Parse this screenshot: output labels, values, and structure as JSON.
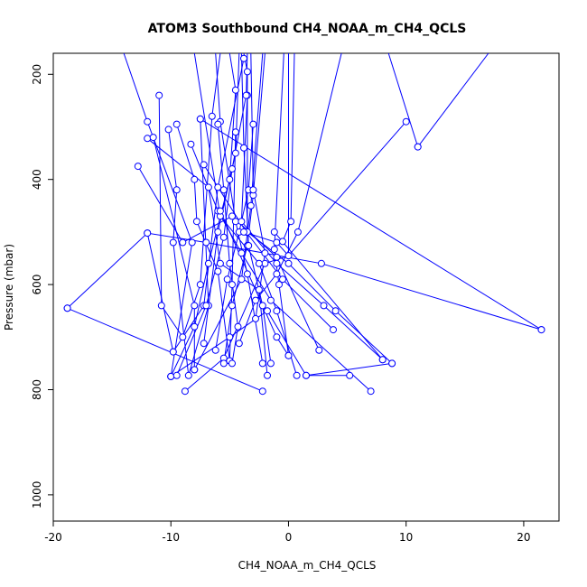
{
  "chart_data": {
    "type": "line",
    "title": "ATOM3 Southbound CH4_NOAA_m_CH4_QCLS",
    "xlabel": "CH4_NOAA_m_CH4_QCLS",
    "ylabel": "Pressure (mbar)",
    "xlim": [
      -20,
      23
    ],
    "ylim": [
      1050,
      160
    ],
    "y_reversed": true,
    "x_ticks": [
      -20,
      -10,
      0,
      10,
      20
    ],
    "y_ticks": [
      200,
      400,
      600,
      800,
      1000
    ],
    "grid": false,
    "line_color": "#0000ff",
    "point_color": "#0000ff",
    "marker": "open-circle",
    "series": [
      {
        "points": [
          [
            -14.0,
            160
          ],
          [
            -12.0,
            290
          ],
          [
            -8.2,
            520
          ],
          [
            -10.0,
            775
          ]
        ]
      },
      {
        "points": [
          [
            -10.0,
            775
          ],
          [
            -5.0,
            700
          ],
          [
            -1.8,
            650
          ],
          [
            1.5,
            773
          ],
          [
            5.2,
            773
          ]
        ]
      },
      {
        "points": [
          [
            -12.0,
            322
          ],
          [
            -6.8,
            415
          ],
          [
            -5.8,
            560
          ],
          [
            -2.5,
            610
          ],
          [
            -1.8,
            773
          ]
        ]
      },
      {
        "points": [
          [
            -18.8,
            645
          ],
          [
            -12.0,
            502
          ],
          [
            -7.0,
            520
          ],
          [
            2.8,
            560
          ],
          [
            21.5,
            686
          ]
        ]
      },
      {
        "points": [
          [
            -18.8,
            645
          ],
          [
            -2.2,
            803
          ]
        ]
      },
      {
        "points": [
          [
            -9.8,
            728
          ],
          [
            -7.2,
            640
          ],
          [
            -6.0,
            415
          ],
          [
            -3.8,
            170
          ]
        ]
      },
      {
        "points": [
          [
            -8.8,
            803
          ],
          [
            -5.5,
            740
          ],
          [
            -2.0,
            560
          ],
          [
            0.0,
            545
          ],
          [
            10.0,
            290
          ]
        ]
      },
      {
        "points": [
          [
            -12.8,
            375
          ],
          [
            -9.0,
            520
          ],
          [
            -4.8,
            470
          ],
          [
            -1.0,
            548
          ],
          [
            2.6,
            725
          ]
        ]
      },
      {
        "points": [
          [
            -11.0,
            240
          ],
          [
            -10.8,
            640
          ],
          [
            -9.0,
            700
          ],
          [
            -7.5,
            600
          ],
          [
            -6.5,
            280
          ],
          [
            -5.8,
            160
          ]
        ]
      },
      {
        "points": [
          [
            -10.2,
            305
          ],
          [
            -9.5,
            420
          ],
          [
            -9.8,
            520
          ],
          [
            -8.5,
            773
          ],
          [
            -6.8,
            640
          ],
          [
            -7.5,
            285
          ]
        ]
      },
      {
        "points": [
          [
            -9.5,
            295
          ],
          [
            -8.0,
            400
          ],
          [
            -7.8,
            480
          ],
          [
            -6.0,
            575
          ],
          [
            -5.0,
            745
          ],
          [
            -4.8,
            600
          ],
          [
            -4.5,
            310
          ]
        ]
      },
      {
        "points": [
          [
            -8.3,
            333
          ],
          [
            -6.0,
            460
          ],
          [
            -4.0,
            540
          ],
          [
            -1.5,
            630
          ],
          [
            7.0,
            803
          ]
        ]
      },
      {
        "points": [
          [
            -7.2,
            372
          ],
          [
            -3.6,
            500
          ],
          [
            -0.5,
            590
          ],
          [
            3.8,
            686
          ]
        ]
      },
      {
        "points": [
          [
            -6.2,
            725
          ],
          [
            -5.2,
            590
          ],
          [
            -4.2,
            500
          ],
          [
            -3.4,
            420
          ],
          [
            -3.0,
            295
          ]
        ]
      },
      {
        "points": [
          [
            -7.2,
            712
          ],
          [
            -6.0,
            500
          ],
          [
            -4.5,
            350
          ],
          [
            -4.2,
            160
          ]
        ]
      },
      {
        "points": [
          [
            -5.5,
            750
          ],
          [
            -4.8,
            640
          ],
          [
            -3.5,
            526
          ],
          [
            -3.0,
            430
          ],
          [
            -2.0,
            160
          ]
        ]
      },
      {
        "points": [
          [
            -4.2,
            712
          ],
          [
            -2.8,
            630
          ],
          [
            -1.0,
            580
          ],
          [
            0.8,
            500
          ],
          [
            4.5,
            160
          ]
        ]
      },
      {
        "points": [
          [
            -2.2,
            750
          ],
          [
            -3.5,
            580
          ],
          [
            -4.5,
            480
          ],
          [
            -5.8,
            290
          ],
          [
            -6.2,
            160
          ]
        ]
      },
      {
        "points": [
          [
            -1.5,
            750
          ],
          [
            -2.2,
            640
          ],
          [
            -3.4,
            526
          ],
          [
            -3.8,
            340
          ],
          [
            -4.0,
            160
          ]
        ]
      },
      {
        "points": [
          [
            0.0,
            735
          ],
          [
            -0.8,
            600
          ],
          [
            -1.2,
            533
          ],
          [
            -0.4,
            160
          ]
        ]
      },
      {
        "points": [
          [
            0.7,
            773
          ],
          [
            -1.0,
            650
          ],
          [
            -2.5,
            560
          ],
          [
            -5.8,
            470
          ],
          [
            -8.0,
            160
          ]
        ]
      },
      {
        "points": [
          [
            8.0,
            743
          ],
          [
            3.0,
            640
          ],
          [
            -1.0,
            560
          ],
          [
            -4.0,
            480
          ],
          [
            -3.5,
            240
          ]
        ]
      },
      {
        "points": [
          [
            8.8,
            750
          ],
          [
            4.0,
            650
          ],
          [
            0.0,
            560
          ],
          [
            -3.5,
            500
          ],
          [
            -3.5,
            195
          ],
          [
            -3.8,
            160
          ]
        ]
      },
      {
        "points": [
          [
            -6.0,
            295
          ],
          [
            -5.5,
            420
          ],
          [
            -5.0,
            560
          ],
          [
            -4.3,
            680
          ],
          [
            -4.8,
            750
          ]
        ]
      },
      {
        "points": [
          [
            -3.8,
            500
          ],
          [
            -1.0,
            520
          ],
          [
            0.0,
            545
          ],
          [
            0.0,
            160
          ]
        ]
      },
      {
        "points": [
          [
            -0.5,
            518
          ],
          [
            0.2,
            480
          ],
          [
            0.5,
            160
          ]
        ]
      },
      {
        "points": [
          [
            -7.5,
            285
          ],
          [
            21.5,
            686
          ]
        ]
      },
      {
        "points": [
          [
            -11.5,
            320
          ],
          [
            -8.0,
            640
          ],
          [
            -8.0,
            762
          ]
        ]
      },
      {
        "points": [
          [
            -8.0,
            762
          ],
          [
            -4.0,
            590
          ],
          [
            -3.2,
            450
          ],
          [
            -2.2,
            160
          ]
        ]
      },
      {
        "points": [
          [
            -1.2,
            500
          ],
          [
            8.0,
            743
          ]
        ]
      },
      {
        "points": [
          [
            11.0,
            338
          ],
          [
            17.0,
            160
          ]
        ]
      },
      {
        "points": [
          [
            11.0,
            338
          ],
          [
            8.5,
            160
          ]
        ]
      },
      {
        "points": [
          [
            1.5,
            773
          ],
          [
            8.8,
            750
          ]
        ]
      },
      {
        "points": [
          [
            -5.8,
            460
          ],
          [
            -1.0,
            700
          ],
          [
            0.0,
            735
          ]
        ]
      },
      {
        "points": [
          [
            -12.0,
            502
          ],
          [
            -9.8,
            728
          ]
        ]
      },
      {
        "points": [
          [
            -10.0,
            775
          ],
          [
            -8.0,
            680
          ],
          [
            -6.8,
            560
          ],
          [
            -5.0,
            400
          ],
          [
            -4.5,
            230
          ],
          [
            -5.0,
            160
          ]
        ]
      },
      {
        "points": [
          [
            -9.5,
            773
          ],
          [
            -7.0,
            640
          ],
          [
            -5.5,
            510
          ],
          [
            -4.8,
            380
          ],
          [
            -3.6,
            240
          ],
          [
            -3.5,
            160
          ]
        ]
      },
      {
        "points": [
          [
            -2.8,
            665
          ],
          [
            -2.0,
            540
          ],
          [
            -3.0,
            420
          ],
          [
            -3.2,
            160
          ]
        ]
      }
    ]
  }
}
